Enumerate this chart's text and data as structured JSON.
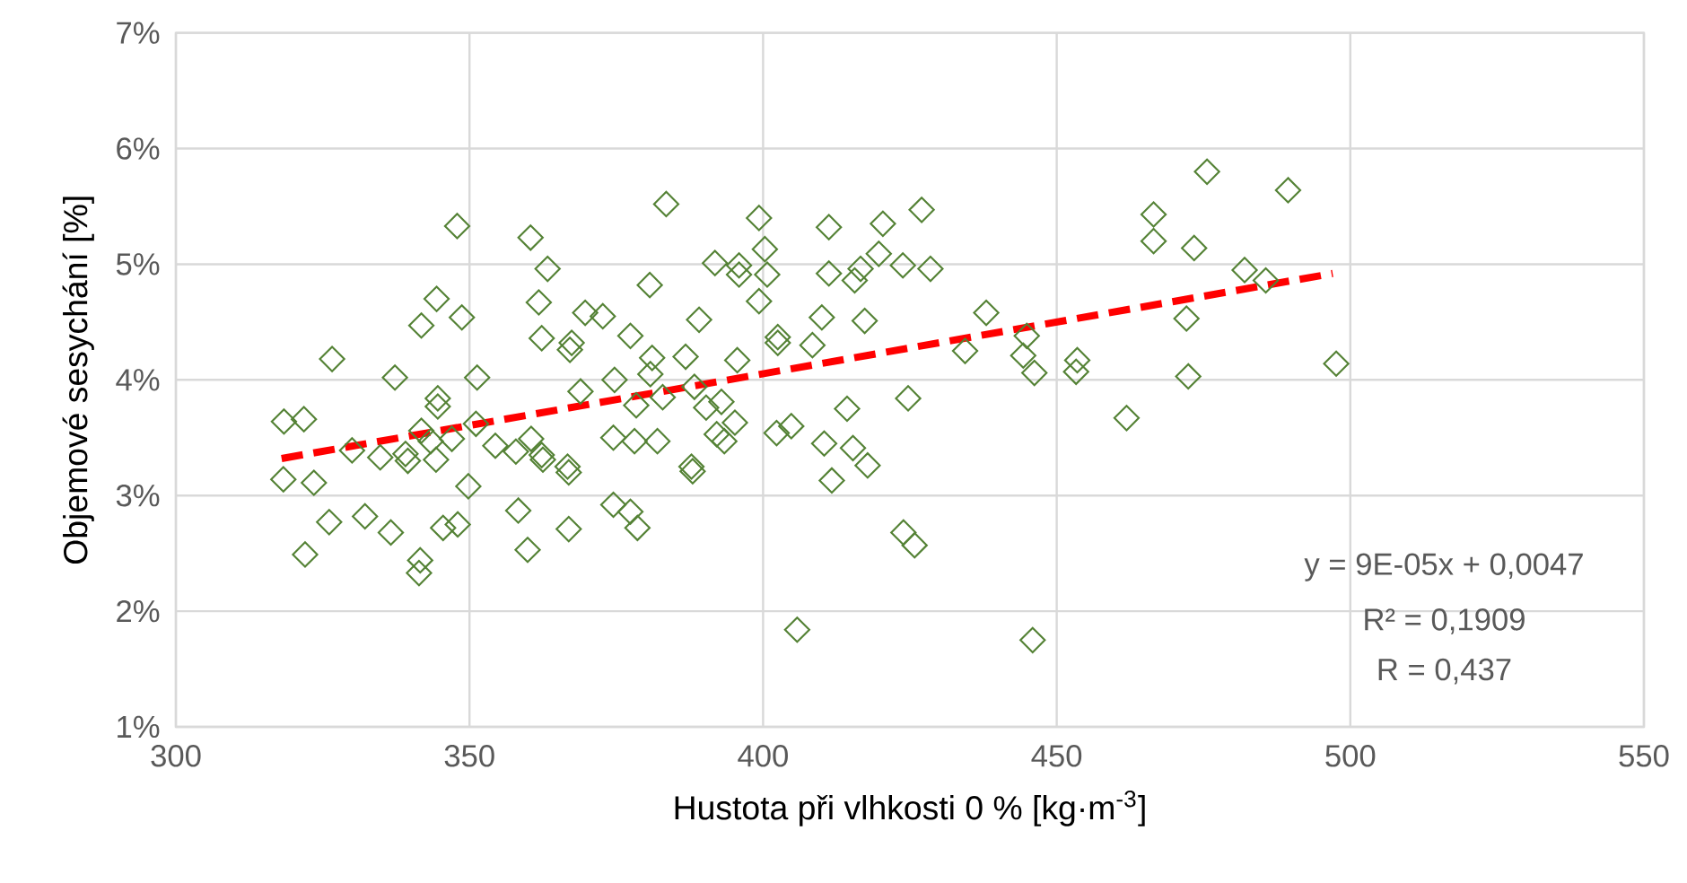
{
  "chart_data": {
    "type": "scatter",
    "xlabel": "Hustota při vlhkosti 0 % [kg·m$^{-3}$]",
    "ylabel": "Objemové sesychání [%]",
    "xlim": [
      300,
      550
    ],
    "xticks": [
      300,
      350,
      400,
      450,
      500,
      550
    ],
    "ylim": [
      1,
      7
    ],
    "yticks": [
      {
        "value": 1,
        "label": "1%"
      },
      {
        "value": 2,
        "label": "2%"
      },
      {
        "value": 3,
        "label": "3%"
      },
      {
        "value": 4,
        "label": "4%"
      },
      {
        "value": 5,
        "label": "5%"
      },
      {
        "value": 6,
        "label": "6%"
      },
      {
        "value": 7,
        "label": "7%"
      }
    ],
    "grid": true,
    "marker": "diamond",
    "annotations": [
      "y = 9E-05x + 0,0047",
      "R² = 0,1909",
      "R = 0,437"
    ],
    "series": [
      {
        "color": "#548235",
        "x": [
          347.9,
          360.4,
          344.4,
          341.8,
          348.7,
          326.6,
          337.3,
          351.3,
          344.6,
          344.6,
          318.4,
          321.8,
          351.1,
          341.8,
          330.0,
          334.8,
          339.1,
          339.5,
          343.4,
          347.0,
          344.3,
          354.4,
          357.9,
          318.3,
          323.5,
          349.8,
          326.1,
          332.2,
          336.6,
          345.5,
          348.0,
          358.3,
          322.0,
          341.6,
          341.4,
          359.9,
          383.5,
          399.3,
          363.3,
          400.3,
          391.8,
          395.9,
          395.9,
          400.7,
          380.7,
          361.8,
          369.7,
          372.7,
          399.3,
          389.1,
          362.3,
          367.4,
          367.1,
          377.4,
          402.5,
          402.5,
          381.1,
          380.8,
          386.8,
          395.6,
          374.7,
          368.9,
          378.4,
          382.9,
          388.3,
          390.3,
          392.9,
          395.2,
          392.1,
          393.4,
          374.5,
          378.1,
          382.0,
          360.5,
          362.3,
          362.5,
          366.7,
          366.9,
          387.8,
          388.0,
          402.3,
          404.8,
          374.5,
          377.4,
          378.6,
          366.9,
          405.8,
          427.0,
          411.2,
          420.4,
          419.7,
          416.6,
          415.6,
          411.2,
          423.8,
          428.5,
          410.0,
          417.3,
          438.0,
          408.4,
          434.4,
          444.9,
          444.3,
          446.2,
          453.5,
          453.3,
          414.3,
          424.7,
          410.4,
          415.3,
          417.8,
          411.7,
          423.9,
          425.8,
          445.9,
          475.6,
          489.4,
          466.5,
          466.5,
          473.4,
          482.0,
          485.6,
          472.1,
          472.4,
          497.6,
          461.9
        ],
        "values": [
          5.33,
          5.23,
          4.7,
          4.47,
          4.54,
          4.18,
          4.02,
          4.02,
          3.84,
          3.77,
          3.64,
          3.66,
          3.62,
          3.56,
          3.39,
          3.33,
          3.36,
          3.3,
          3.47,
          3.49,
          3.31,
          3.43,
          3.38,
          3.14,
          3.11,
          3.08,
          2.77,
          2.82,
          2.68,
          2.72,
          2.75,
          2.87,
          2.49,
          2.44,
          2.33,
          2.53,
          5.52,
          5.4,
          4.96,
          5.13,
          5.01,
          4.99,
          4.91,
          4.91,
          4.82,
          4.67,
          4.58,
          4.55,
          4.68,
          4.52,
          4.36,
          4.32,
          4.26,
          4.38,
          4.37,
          4.32,
          4.19,
          4.05,
          4.2,
          4.17,
          4.0,
          3.9,
          3.78,
          3.85,
          3.94,
          3.76,
          3.81,
          3.63,
          3.53,
          3.47,
          3.5,
          3.47,
          3.47,
          3.49,
          3.35,
          3.31,
          3.25,
          3.2,
          3.25,
          3.21,
          3.54,
          3.6,
          2.92,
          2.86,
          2.72,
          2.71,
          1.84,
          5.47,
          5.32,
          5.35,
          5.09,
          4.96,
          4.86,
          4.92,
          4.99,
          4.96,
          4.54,
          4.51,
          4.58,
          4.3,
          4.25,
          4.38,
          4.21,
          4.06,
          4.17,
          4.07,
          3.75,
          3.84,
          3.45,
          3.41,
          3.26,
          3.13,
          2.68,
          2.57,
          1.75,
          5.8,
          5.64,
          5.43,
          5.2,
          5.14,
          4.95,
          4.86,
          4.53,
          4.03,
          4.14,
          3.67
        ]
      },
      {
        "type": "line",
        "color": "#ff0000",
        "line_style": "dashed",
        "marker": "none",
        "x": [
          318,
          497
        ],
        "values": [
          3.32,
          4.92
        ]
      }
    ]
  }
}
